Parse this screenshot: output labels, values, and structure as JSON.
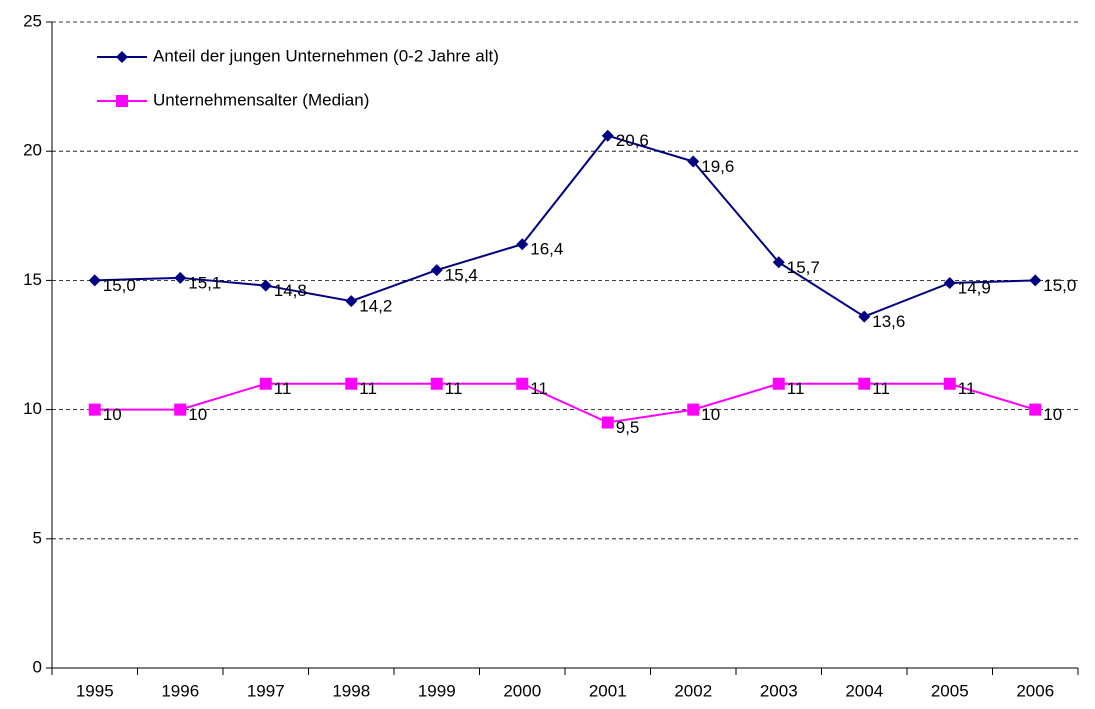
{
  "chart_data": {
    "type": "line",
    "categories": [
      "1995",
      "1996",
      "1997",
      "1998",
      "1999",
      "2000",
      "2001",
      "2002",
      "2003",
      "2004",
      "2005",
      "2006"
    ],
    "series": [
      {
        "name": "Anteil der jungen Unternehmen (0-2 Jahre alt)",
        "color": "#000080",
        "marker": "diamond",
        "values": [
          15.0,
          15.1,
          14.8,
          14.2,
          15.4,
          16.4,
          20.6,
          19.6,
          15.7,
          13.6,
          14.9,
          15.0
        ],
        "value_labels": [
          "15,0",
          "15,1",
          "14,8",
          "14,2",
          "15,4",
          "16,4",
          "20,6",
          "19,6",
          "15,7",
          "13,6",
          "14,9",
          "15,0"
        ]
      },
      {
        "name": "Unternehmensalter (Median)",
        "color": "#ff00ff",
        "marker": "square",
        "values": [
          10,
          10,
          11,
          11,
          11,
          11,
          9.5,
          10,
          11,
          11,
          11,
          10
        ],
        "value_labels": [
          "10",
          "10",
          "11",
          "11",
          "11",
          "11",
          "9,5",
          "10",
          "11",
          "11",
          "11",
          "10"
        ]
      }
    ],
    "ylim": [
      0,
      25
    ],
    "yticks": [
      0,
      5,
      10,
      15,
      20,
      25
    ],
    "grid": true,
    "legend": "top-left"
  }
}
